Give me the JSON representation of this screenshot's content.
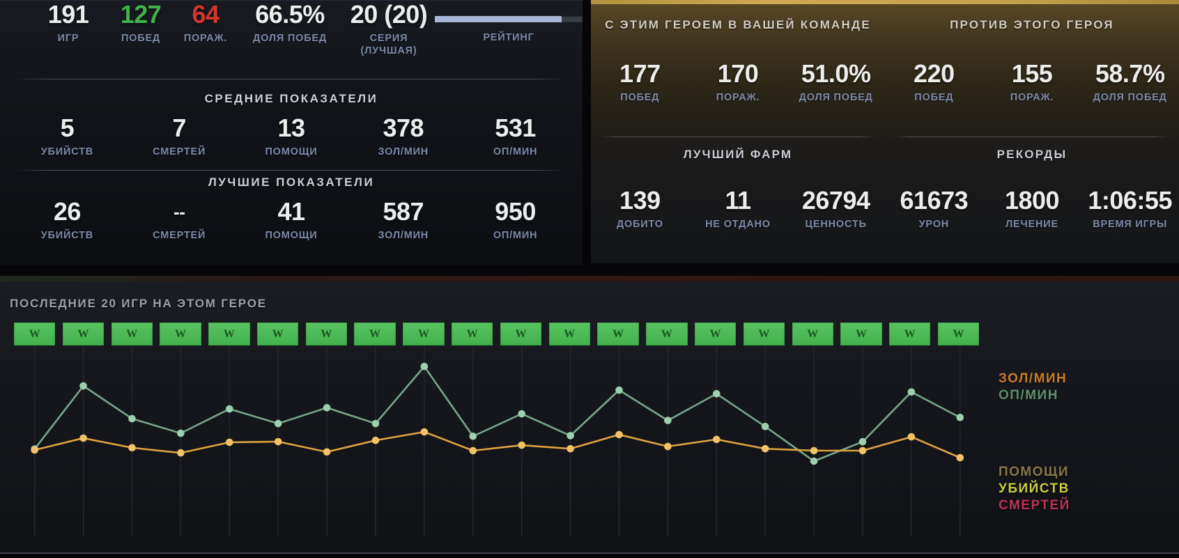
{
  "colors": {
    "win_green": "#3fb24a",
    "loss_red": "#d2372c",
    "gold_top_bar": "#c6a24c",
    "rating_fill": "#a9b6d9",
    "rating_track": "#3a3e45",
    "wl_box_green": "#4cb757",
    "wl_letter_green": "#175a1e"
  },
  "overview": {
    "stats": [
      {
        "value": "191",
        "label": "ИГР"
      },
      {
        "value": "127",
        "label": "ПОБЕД"
      },
      {
        "value": "64",
        "label": "ПОРАЖ."
      },
      {
        "value": "66.5%",
        "label": "ДОЛЯ ПОБЕД"
      },
      {
        "value": "20 (20)",
        "label": "СЕРИЯ (ЛУЧШАЯ)"
      }
    ],
    "rating": {
      "label": "РЕЙТИНГ",
      "percent": 86
    }
  },
  "averages": {
    "title": "СРЕДНИЕ ПОКАЗАТЕЛИ",
    "stats": [
      {
        "value": "5",
        "label": "УБИЙСТВ"
      },
      {
        "value": "7",
        "label": "СМЕРТЕЙ"
      },
      {
        "value": "13",
        "label": "ПОМОЩИ"
      },
      {
        "value": "378",
        "label": "ЗОЛ/МИН"
      },
      {
        "value": "531",
        "label": "ОП/МИН"
      }
    ]
  },
  "bests": {
    "title": "ЛУЧШИЕ ПОКАЗАТЕЛИ",
    "stats": [
      {
        "value": "26",
        "label": "УБИЙСТВ"
      },
      {
        "value": "--",
        "label": "СМЕРТЕЙ"
      },
      {
        "value": "41",
        "label": "ПОМОЩИ"
      },
      {
        "value": "587",
        "label": "ЗОЛ/МИН"
      },
      {
        "value": "950",
        "label": "ОП/МИН"
      }
    ]
  },
  "ally": {
    "title": "С ЭТИМ ГЕРОЕМ В ВАШЕЙ КОМАНДЕ",
    "stats": [
      {
        "value": "177",
        "label": "ПОБЕД"
      },
      {
        "value": "170",
        "label": "ПОРАЖ."
      },
      {
        "value": "51.0%",
        "label": "ДОЛЯ ПОБЕД"
      }
    ]
  },
  "enemy": {
    "title": "ПРОТИВ ЭТОГО ГЕРОЯ",
    "stats": [
      {
        "value": "220",
        "label": "ПОБЕД"
      },
      {
        "value": "155",
        "label": "ПОРАЖ."
      },
      {
        "value": "58.7%",
        "label": "ДОЛЯ ПОБЕД"
      }
    ]
  },
  "farm": {
    "title": "ЛУЧШИЙ ФАРМ",
    "stats": [
      {
        "value": "139",
        "label": "ДОБИТО"
      },
      {
        "value": "11",
        "label": "НЕ ОТДАНО"
      },
      {
        "value": "26794",
        "label": "ЦЕННОСТЬ"
      }
    ]
  },
  "records": {
    "title": "РЕКОРДЫ",
    "stats": [
      {
        "value": "61673",
        "label": "УРОН"
      },
      {
        "value": "1800",
        "label": "ЛЕЧЕНИЕ"
      },
      {
        "value": "1:06:55",
        "label": "ВРЕМЯ ИГРЫ"
      }
    ]
  },
  "recent": {
    "title": "ПОСЛЕДНИЕ 20 ИГР НА ЭТОМ ГЕРОЕ",
    "results": [
      "W",
      "W",
      "W",
      "W",
      "W",
      "W",
      "W",
      "W",
      "W",
      "W",
      "W",
      "W",
      "W",
      "W",
      "W",
      "W",
      "W",
      "W",
      "W",
      "W"
    ]
  },
  "chart_data": {
    "type": "line",
    "title": "ПОСЛЕДНИЕ 20 ИГР НА ЭТОМ ГЕРОЕ",
    "x": [
      1,
      2,
      3,
      4,
      5,
      6,
      7,
      8,
      9,
      10,
      11,
      12,
      13,
      14,
      15,
      16,
      17,
      18,
      19,
      20
    ],
    "grid": "vertical-only",
    "legend_position": "right",
    "series": [
      {
        "name": "ЗОЛ/МИН",
        "color": "#dfa440",
        "point_color": "#f2c268",
        "legend_color": "#c87c28",
        "ylim": [
          185,
          587
        ],
        "values": [
          305,
          490,
          340,
          260,
          425,
          435,
          275,
          455,
          587,
          295,
          380,
          325,
          545,
          360,
          470,
          325,
          295,
          295,
          510,
          185
        ]
      },
      {
        "name": "ОП/МИН",
        "color": "#78a78a",
        "point_color": "#9ecfae",
        "legend_color": "#5e8f6b",
        "ylim": [
          170,
          950
        ],
        "values": [
          270,
          790,
          520,
          400,
          600,
          480,
          610,
          480,
          950,
          375,
          560,
          380,
          755,
          505,
          725,
          455,
          170,
          330,
          740,
          530
        ]
      }
    ],
    "secondary_legend": [
      {
        "name": "ПОМОЩИ",
        "color": "#87764a"
      },
      {
        "name": "УБИЙСТВ",
        "color": "#c9cd3e"
      },
      {
        "name": "СМЕРТЕЙ",
        "color": "#bb3355"
      }
    ]
  }
}
